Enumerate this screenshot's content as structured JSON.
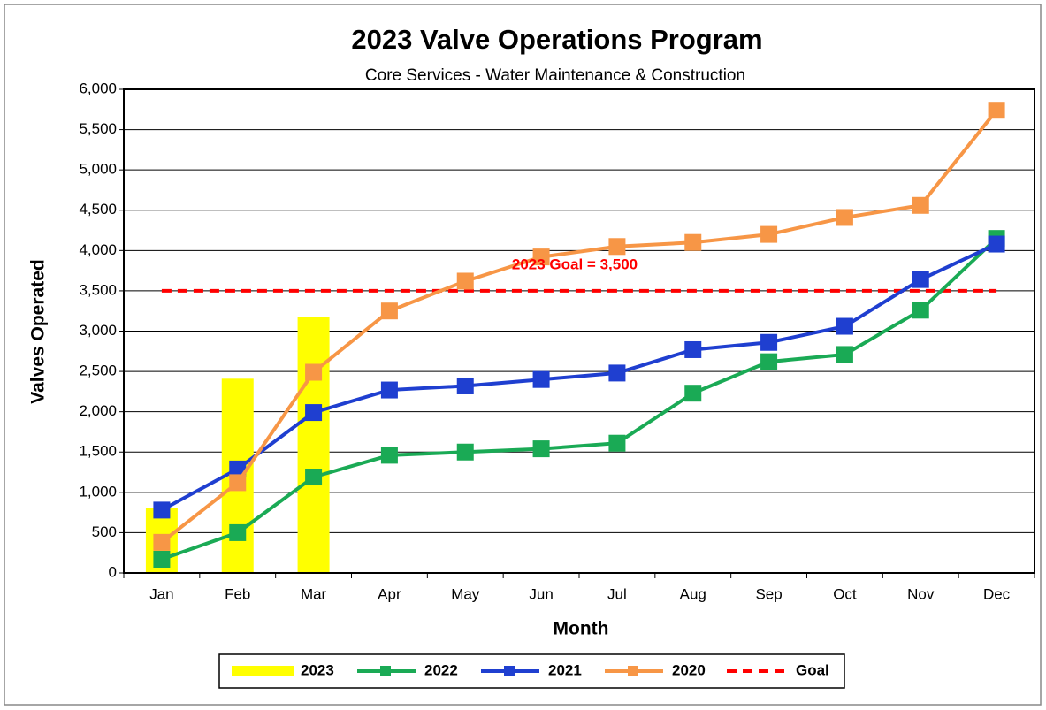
{
  "chart_data": {
    "type": "line",
    "title": "2023 Valve Operations Program",
    "subtitle": "Core Services - Water Maintenance & Construction",
    "x_label": "Month",
    "y_label": "Valves Operated",
    "annotation": "2023 Goal = 3,500",
    "categories": [
      "Jan",
      "Feb",
      "Mar",
      "Apr",
      "May",
      "Jun",
      "Jul",
      "Aug",
      "Sep",
      "Oct",
      "Nov",
      "Dec"
    ],
    "series": [
      {
        "name": "2023",
        "type": "bar",
        "color": "#ffff00",
        "values": [
          810,
          2410,
          3180,
          null,
          null,
          null,
          null,
          null,
          null,
          null,
          null,
          null
        ]
      },
      {
        "name": "2022",
        "type": "line",
        "color": "#1aaa55",
        "values": [
          170,
          500,
          1190,
          1460,
          1500,
          1540,
          1610,
          2230,
          2620,
          2710,
          3260,
          4150
        ]
      },
      {
        "name": "2021",
        "type": "line",
        "color": "#1f3fd0",
        "values": [
          780,
          1290,
          1990,
          2270,
          2320,
          2400,
          2480,
          2770,
          2860,
          3060,
          3640,
          4080
        ]
      },
      {
        "name": "2020",
        "type": "line",
        "color": "#f79646",
        "values": [
          380,
          1120,
          2490,
          3250,
          3620,
          3920,
          4050,
          4100,
          4200,
          4410,
          4560,
          5740
        ]
      },
      {
        "name": "Goal",
        "type": "dashed",
        "color": "#ff0000",
        "values": [
          3500,
          3500,
          3500,
          3500,
          3500,
          3500,
          3500,
          3500,
          3500,
          3500,
          3500,
          3500
        ]
      }
    ],
    "ylim": [
      0,
      6000
    ],
    "yticks": [
      0,
      500,
      {
        "value": 1000,
        "label": "1,000"
      },
      {
        "value": 1500,
        "label": "1,500"
      },
      {
        "value": 2000,
        "label": "2,000"
      },
      {
        "value": 2500,
        "label": "2,500"
      },
      {
        "value": 3000,
        "label": "3,000"
      },
      {
        "value": 3500,
        "label": "3,500"
      },
      {
        "value": 4000,
        "label": "4,000"
      },
      {
        "value": 4500,
        "label": "4,500"
      },
      {
        "value": 5000,
        "label": "5,000"
      },
      {
        "value": 5500,
        "label": "5,500"
      },
      {
        "value": 6000,
        "label": "6,000"
      }
    ],
    "grid": true,
    "legend": "bottom"
  }
}
